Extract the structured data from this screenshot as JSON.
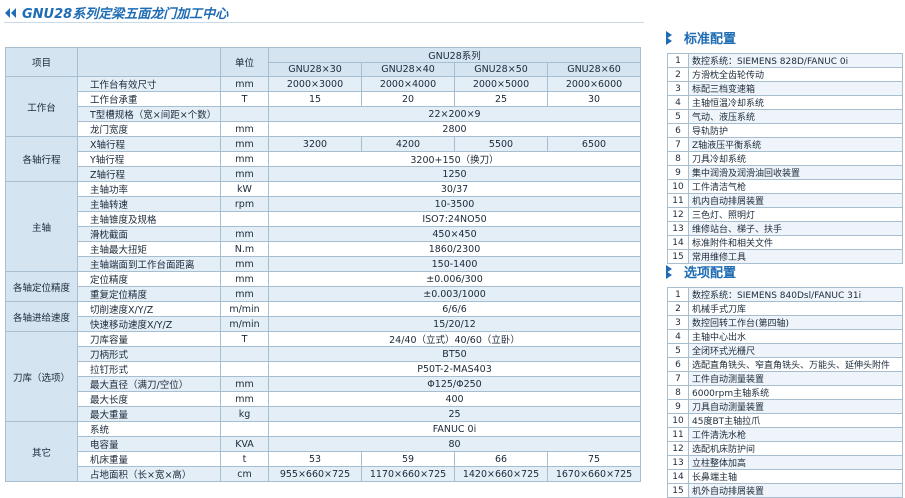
{
  "header": {
    "title": "GNU28系列定梁五面龙门加工中心"
  },
  "spec_table": {
    "columns": {
      "item": "项目",
      "unit": "单位",
      "series": "GNU28系列",
      "models": [
        "GNU28×30",
        "GNU28×40",
        "GNU28×50",
        "GNU28×60"
      ]
    },
    "groups": [
      {
        "name": "工作台",
        "rows": [
          {
            "item": "工作台有效尺寸",
            "unit": "mm",
            "values": [
              "2000×3000",
              "2000×4000",
              "2000×5000",
              "2000×6000"
            ]
          },
          {
            "item": "工作台承重",
            "unit": "T",
            "values": [
              15,
              20,
              25,
              30
            ]
          },
          {
            "item": "T型槽规格（宽×间距×个数）",
            "values": [
              "22×200×9"
            ]
          },
          {
            "item": "龙门宽度",
            "unit": "mm",
            "values": [
              2800
            ]
          }
        ]
      },
      {
        "name": "各轴行程",
        "rows": [
          {
            "item": "X轴行程",
            "unit": "mm",
            "values": [
              3200,
              4200,
              5500,
              6500
            ]
          },
          {
            "item": "Y轴行程",
            "unit": "mm",
            "values": [
              "3200+150（换刀）"
            ]
          },
          {
            "item": "Z轴行程",
            "unit": "mm",
            "values": [
              1250
            ]
          }
        ]
      },
      {
        "name": "主轴",
        "rows": [
          {
            "item": "主轴功率",
            "unit": "kW",
            "values": [
              "30/37"
            ]
          },
          {
            "item": "主轴转速",
            "unit": "rpm",
            "values": [
              "10-3500"
            ]
          },
          {
            "item": "主轴锥度及规格",
            "values": [
              "ISO7:24NO50"
            ]
          },
          {
            "item": "滑枕截面",
            "unit": "mm",
            "values": [
              "450×450"
            ]
          },
          {
            "item": "主轴最大扭矩",
            "unit": "N.m",
            "values": [
              "1860/2300"
            ]
          },
          {
            "item": "主轴端面到工作台面距离",
            "unit": "mm",
            "values": [
              "150-1400"
            ]
          }
        ]
      },
      {
        "name": "各轴定位精度",
        "rows": [
          {
            "item": "定位精度",
            "unit": "mm",
            "values": [
              "±0.006/300"
            ]
          },
          {
            "item": "重复定位精度",
            "unit": "mm",
            "values": [
              "±0.003/1000"
            ]
          }
        ]
      },
      {
        "name": "各轴进给速度",
        "rows": [
          {
            "item": "切削速度X/Y/Z",
            "unit": "m/min",
            "values": [
              "6/6/6"
            ]
          },
          {
            "item": "快速移动速度X/Y/Z",
            "unit": "m/min",
            "values": [
              "15/20/12"
            ]
          }
        ]
      },
      {
        "name": "刀库（选项）",
        "rows": [
          {
            "item": "刀库容量",
            "unit": "T",
            "values": [
              "24/40（立式）40/60（立卧）"
            ]
          },
          {
            "item": "刀柄形式",
            "values": [
              "BT50"
            ]
          },
          {
            "item": "拉钉形式",
            "values": [
              "P50T-2-MAS403"
            ]
          },
          {
            "item": "最大直径（满刀/空位）",
            "unit": "mm",
            "values": [
              "Φ125/Φ250"
            ]
          },
          {
            "item": "最大长度",
            "unit": "mm",
            "values": [
              400
            ]
          },
          {
            "item": "最大重量",
            "unit": "kg",
            "values": [
              25
            ]
          }
        ]
      },
      {
        "name": "其它",
        "rows": [
          {
            "item": "系统",
            "values": [
              "FANUC 0i"
            ]
          },
          {
            "item": "电容量",
            "unit": "KVA",
            "values": [
              80
            ]
          },
          {
            "item": "机床重量",
            "unit": "t",
            "values": [
              53,
              59,
              66,
              75
            ]
          },
          {
            "item": "占地面积（长×宽×高）",
            "unit": "cm",
            "values": [
              "955×660×725",
              "1170×660×725",
              "1420×660×725",
              "1670×660×725"
            ]
          }
        ]
      }
    ]
  },
  "standard_config": {
    "title": "标准配置",
    "items": [
      {
        "no": 1,
        "text": "数控系统：SIEMENS 828D/FANUC 0i"
      },
      {
        "no": 2,
        "text": "方滑枕全齿轮传动"
      },
      {
        "no": 3,
        "text": "标配三档变速箱"
      },
      {
        "no": 4,
        "text": "主轴恒温冷却系统"
      },
      {
        "no": 5,
        "text": "气动、液压系统"
      },
      {
        "no": 6,
        "text": "导轨防护"
      },
      {
        "no": 7,
        "text": "Z轴液压平衡系统"
      },
      {
        "no": 8,
        "text": "刀具冷却系统"
      },
      {
        "no": 9,
        "text": "集中润滑及润滑油回收装置"
      },
      {
        "no": 10,
        "text": "工件清洁气枪"
      },
      {
        "no": 11,
        "text": "机内自动排屑装置"
      },
      {
        "no": 12,
        "text": "三色灯、照明灯"
      },
      {
        "no": 13,
        "text": "维修站台、梯子、扶手"
      },
      {
        "no": 14,
        "text": "标准附件和相关文件"
      },
      {
        "no": 15,
        "text": "常用维修工具"
      }
    ]
  },
  "optional_config": {
    "title": "选项配置",
    "items": [
      {
        "no": 1,
        "text": "数控系统：SIEMENS 840Dsl/FANUC 31i"
      },
      {
        "no": 2,
        "text": "机械手式刀库"
      },
      {
        "no": 3,
        "text": "数控回转工作台(第四轴)"
      },
      {
        "no": 4,
        "text": "主轴中心出水"
      },
      {
        "no": 5,
        "text": "全闭环式光栅尺"
      },
      {
        "no": 6,
        "text": "选配直角铣头、窄直角铣头、万能头、延伸头附件"
      },
      {
        "no": 7,
        "text": "工件自动测量装置"
      },
      {
        "no": 8,
        "text": "6000rpm主轴系统"
      },
      {
        "no": 9,
        "text": "刀具自动测量装置"
      },
      {
        "no": 10,
        "text": "45度BT主轴拉爪"
      },
      {
        "no": 11,
        "text": "工件清洗水枪"
      },
      {
        "no": 12,
        "text": "选配机床防护间"
      },
      {
        "no": 13,
        "text": "立柱整体加高"
      },
      {
        "no": 14,
        "text": "长鼻端主轴"
      },
      {
        "no": 15,
        "text": "机外自动排屑装置"
      }
    ]
  }
}
